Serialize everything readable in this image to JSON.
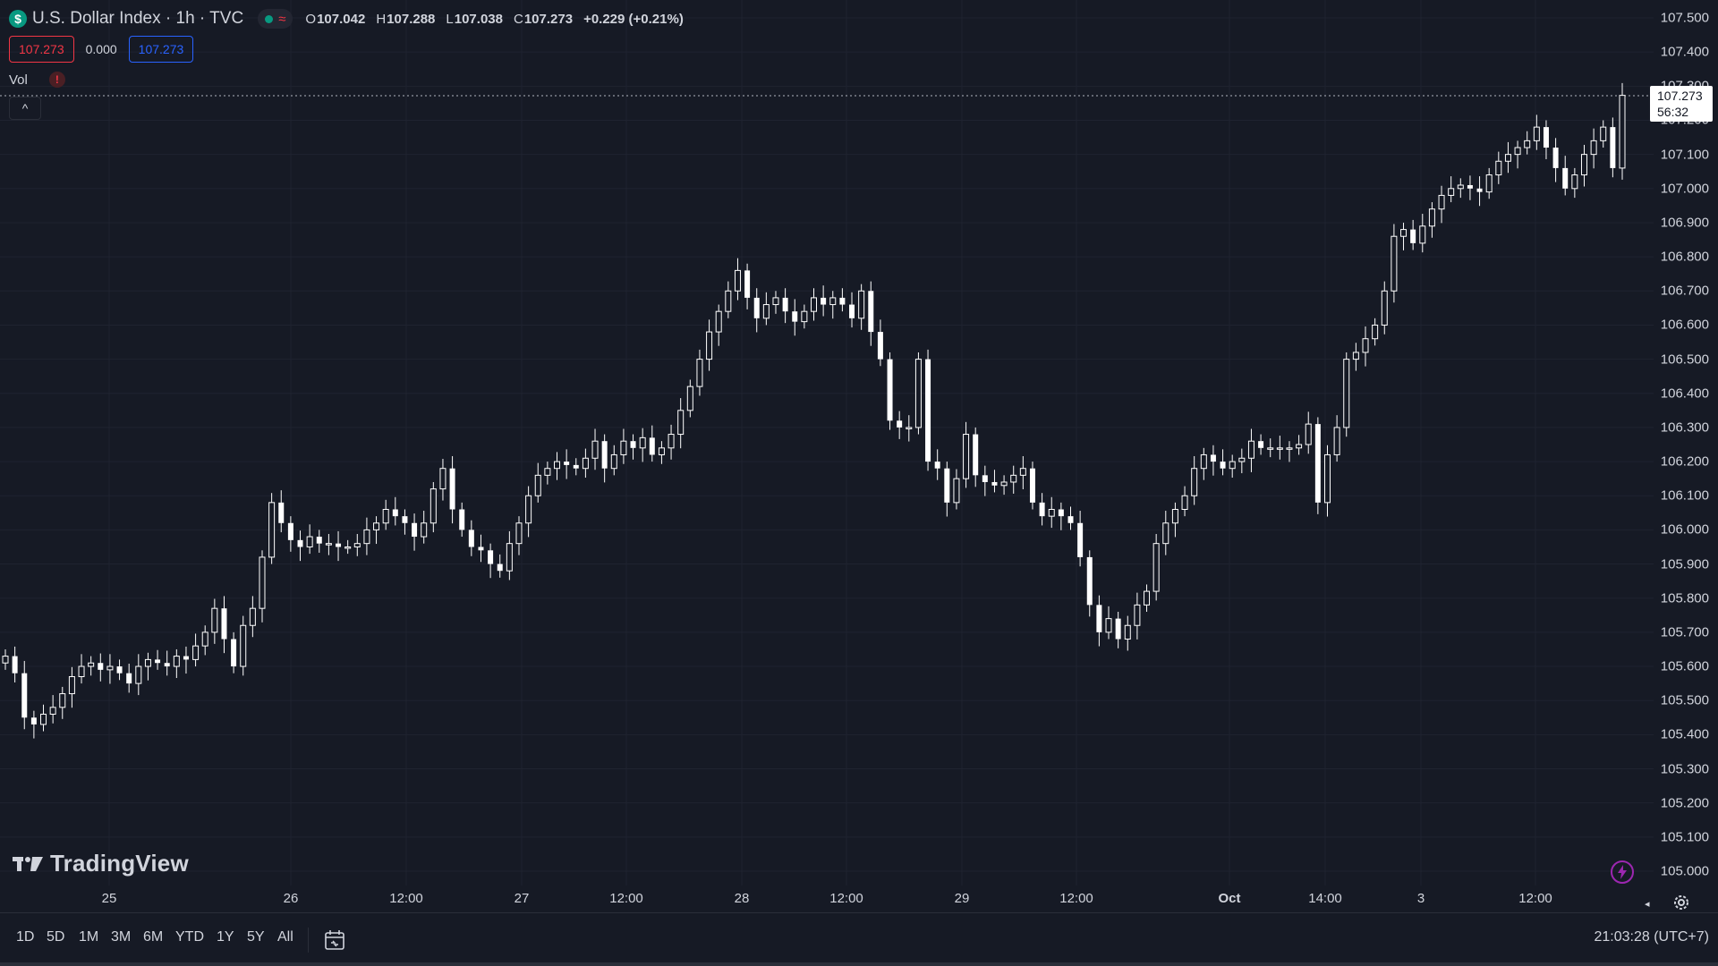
{
  "header": {
    "symbol_icon": "$",
    "title": "U.S. Dollar Index · 1h · TVC",
    "status_icon": "market-status-icon",
    "ohlc": [
      {
        "key": "O",
        "value": "107.042"
      },
      {
        "key": "H",
        "value": "107.288"
      },
      {
        "key": "L",
        "value": "107.038"
      },
      {
        "key": "C",
        "value": "107.273"
      }
    ],
    "change": "+0.229 (+0.21%)",
    "sell_price": "107.273",
    "spread": "0.000",
    "buy_price": "107.273"
  },
  "volume": {
    "label": "Vol",
    "warning_icon": "!"
  },
  "collapse": {
    "icon": "^"
  },
  "price_scale": {
    "ticks": [
      "107.500",
      "107.400",
      "107.300",
      "107.200",
      "107.100",
      "107.000",
      "106.900",
      "106.800",
      "106.700",
      "106.600",
      "106.500",
      "106.400",
      "106.300",
      "106.200",
      "106.100",
      "106.000",
      "105.900",
      "105.800",
      "105.700",
      "105.600",
      "105.500",
      "105.400",
      "105.300",
      "105.200",
      "105.100",
      "105.000"
    ],
    "last_price": "107.273",
    "countdown": "56:32"
  },
  "time_axis": {
    "ticks": [
      {
        "label": "25",
        "bold": false
      },
      {
        "label": "26",
        "bold": false
      },
      {
        "label": "12:00",
        "bold": false
      },
      {
        "label": "27",
        "bold": false
      },
      {
        "label": "12:00",
        "bold": false
      },
      {
        "label": "28",
        "bold": false
      },
      {
        "label": "12:00",
        "bold": false
      },
      {
        "label": "29",
        "bold": false
      },
      {
        "label": "12:00",
        "bold": false
      },
      {
        "label": "Oct",
        "bold": true
      },
      {
        "label": "14:00",
        "bold": false
      },
      {
        "label": "3",
        "bold": false
      },
      {
        "label": "12:00",
        "bold": false
      }
    ]
  },
  "bottom_bar": {
    "ranges": [
      "1D",
      "5D",
      "1M",
      "3M",
      "6M",
      "YTD",
      "1Y",
      "5Y",
      "All"
    ],
    "clock": "21:03:28 (UTC+7)"
  },
  "logo": {
    "text": "TradingView"
  },
  "colors": {
    "background": "#161a25",
    "candle": "#ffffff",
    "grid": "#1f2330",
    "accent_blue": "#2962ff",
    "accent_red": "#f23645",
    "accent_green": "#089981",
    "flash": "#9c27b0"
  },
  "chart_data": {
    "type": "candlestick",
    "symbol": "U.S. Dollar Index",
    "interval": "1h",
    "ylim": [
      105.0,
      107.5
    ],
    "closes": [
      105.63,
      105.58,
      105.45,
      105.43,
      105.46,
      105.48,
      105.52,
      105.57,
      105.6,
      105.61,
      105.59,
      105.6,
      105.58,
      105.55,
      105.6,
      105.62,
      105.61,
      105.6,
      105.63,
      105.62,
      105.66,
      105.7,
      105.77,
      105.68,
      105.6,
      105.72,
      105.77,
      105.92,
      106.08,
      106.02,
      105.97,
      105.95,
      105.98,
      105.96,
      105.96,
      105.95,
      105.95,
      105.96,
      106.0,
      106.02,
      106.06,
      106.04,
      106.02,
      105.98,
      106.02,
      106.12,
      106.18,
      106.06,
      106.0,
      105.95,
      105.94,
      105.9,
      105.88,
      105.96,
      106.02,
      106.1,
      106.16,
      106.18,
      106.2,
      106.19,
      106.18,
      106.21,
      106.26,
      106.18,
      106.22,
      106.26,
      106.24,
      106.27,
      106.22,
      106.24,
      106.28,
      106.35,
      106.42,
      106.5,
      106.58,
      106.64,
      106.7,
      106.76,
      106.68,
      106.62,
      106.66,
      106.68,
      106.64,
      106.61,
      106.64,
      106.68,
      106.66,
      106.68,
      106.66,
      106.62,
      106.7,
      106.58,
      106.5,
      106.32,
      106.3,
      106.3,
      106.5,
      106.2,
      106.18,
      106.08,
      106.15,
      106.28,
      106.16,
      106.14,
      106.13,
      106.14,
      106.16,
      106.18,
      106.08,
      106.04,
      106.06,
      106.04,
      106.02,
      105.92,
      105.78,
      105.7,
      105.74,
      105.68,
      105.72,
      105.78,
      105.82,
      105.96,
      106.02,
      106.06,
      106.1,
      106.18,
      106.22,
      106.2,
      106.18,
      106.2,
      106.21,
      106.26,
      106.24,
      106.24,
      106.24,
      106.24,
      106.25,
      106.31,
      106.08,
      106.22,
      106.3,
      106.5,
      106.52,
      106.56,
      106.6,
      106.7,
      106.86,
      106.88,
      106.84,
      106.89,
      106.94,
      106.98,
      107.0,
      107.01,
      107.0,
      106.99,
      107.04,
      107.08,
      107.1,
      107.12,
      107.14,
      107.18,
      107.12,
      107.06,
      107.0,
      107.04,
      107.1,
      107.14,
      107.18,
      107.06,
      107.273
    ]
  }
}
